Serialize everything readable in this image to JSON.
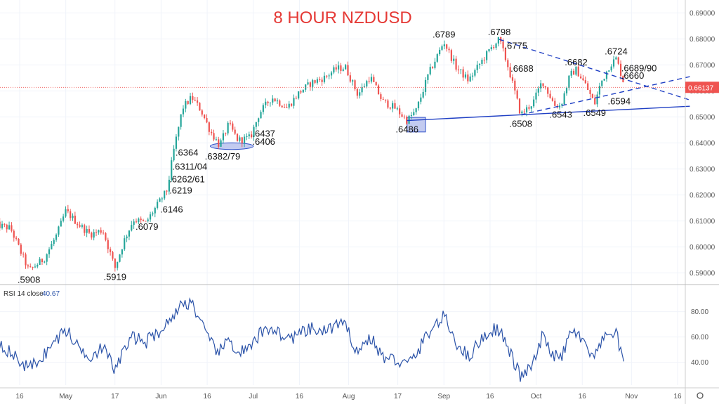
{
  "chart_data": {
    "type": "candlestick",
    "title": "8  HOUR NZDUSD",
    "price_axis": {
      "ticks": [
        "0.69000",
        "0.68000",
        "0.67000",
        "0.66000",
        "0.65000",
        "0.64000",
        "0.63000",
        "0.62000",
        "0.61000",
        "0.60000",
        "0.59000"
      ],
      "ylim": [
        0.5855,
        0.6928
      ],
      "current_price": "0.66137"
    },
    "time_axis": {
      "ticks": [
        "16",
        "May",
        "17",
        "Jun",
        "16",
        "Jul",
        "16",
        "Aug",
        "17",
        "Sep",
        "16",
        "Oct",
        "16",
        "Nov",
        "16"
      ]
    },
    "price_path": [
      [
        "Apr 08",
        0.6085
      ],
      [
        "Apr 13",
        0.6072
      ],
      [
        "Apr 19",
        0.5908
      ],
      [
        "Apr 24",
        0.5955
      ],
      [
        "Apr 28",
        0.6045
      ],
      [
        "May 01",
        0.6138
      ],
      [
        "May 05",
        0.6088
      ],
      [
        "May 09",
        0.6048
      ],
      [
        "May 13",
        0.6065
      ],
      [
        "May 17",
        0.5919
      ],
      [
        "May 20",
        0.6025
      ],
      [
        "May 23",
        0.6105
      ],
      [
        "May 27",
        0.6092
      ],
      [
        "May 31",
        0.6165
      ],
      [
        "Jun 03",
        0.6219
      ],
      [
        "Jun 05",
        0.6364
      ],
      [
        "Jun 08",
        0.6535
      ],
      [
        "Jun 11",
        0.6575
      ],
      [
        "Jun 14",
        0.6525
      ],
      [
        "Jun 17",
        0.6445
      ],
      [
        "Jun 20",
        0.639
      ],
      [
        "Jun 23",
        0.6472
      ],
      [
        "Jun 26",
        0.641
      ],
      [
        "Jun 30",
        0.642
      ],
      [
        "Jul 03",
        0.6515
      ],
      [
        "Jul 07",
        0.6575
      ],
      [
        "Jul 12",
        0.6535
      ],
      [
        "Jul 16",
        0.6595
      ],
      [
        "Jul 20",
        0.6632
      ],
      [
        "Jul 24",
        0.665
      ],
      [
        "Jul 28",
        0.6685
      ],
      [
        "Jul 31",
        0.669
      ],
      [
        "Aug 04",
        0.6585
      ],
      [
        "Aug 08",
        0.6655
      ],
      [
        "Aug 12",
        0.656
      ],
      [
        "Aug 16",
        0.6535
      ],
      [
        "Aug 20",
        0.6486
      ],
      [
        "Aug 23",
        0.6525
      ],
      [
        "Aug 27",
        0.6665
      ],
      [
        "Sep 01",
        0.6789
      ],
      [
        "Sep 05",
        0.669
      ],
      [
        "Sep 09",
        0.664
      ],
      [
        "Sep 13",
        0.671
      ],
      [
        "Sep 17",
        0.6775
      ],
      [
        "Sep 19",
        0.6798
      ],
      [
        "Sep 22",
        0.6688
      ],
      [
        "Sep 26",
        0.6508
      ],
      [
        "Sep 30",
        0.6555
      ],
      [
        "Oct 03",
        0.6638
      ],
      [
        "Oct 07",
        0.6545
      ],
      [
        "Oct 09",
        0.6543
      ],
      [
        "Oct 12",
        0.666
      ],
      [
        "Oct 14",
        0.6682
      ],
      [
        "Oct 17",
        0.6625
      ],
      [
        "Oct 20",
        0.6549
      ],
      [
        "Oct 22",
        0.663
      ],
      [
        "Oct 25",
        0.67
      ],
      [
        "Oct 27",
        0.6724
      ],
      [
        "Oct 28",
        0.6689
      ],
      [
        "Oct 30",
        0.6612
      ]
    ],
    "annotations": [
      {
        "label": ".5908",
        "date": "Apr 19",
        "price": 0.5908,
        "anchor": "below"
      },
      {
        "label": ".5919",
        "date": "May 17",
        "price": 0.5919,
        "anchor": "below"
      },
      {
        "label": ".6079",
        "date": "May 23",
        "price": 0.6079,
        "anchor": "right"
      },
      {
        "label": ".6146",
        "date": "May 31",
        "price": 0.6146,
        "anchor": "right"
      },
      {
        "label": ".6219",
        "date": "Jun 03",
        "price": 0.6219,
        "anchor": "right"
      },
      {
        "label": ".6262/61",
        "date": "Jun 03",
        "price": 0.6262,
        "anchor": "right"
      },
      {
        "label": ".6311/04",
        "date": "Jun 04",
        "price": 0.6311,
        "anchor": "right"
      },
      {
        "label": ".6364",
        "date": "Jun 05",
        "price": 0.6364,
        "anchor": "right"
      },
      {
        "label": ".6382/79",
        "date": "Jun 21",
        "price": 0.6382,
        "anchor": "below"
      },
      {
        "label": ".6406",
        "date": "Jun 30",
        "price": 0.6406,
        "anchor": "right"
      },
      {
        "label": ".6437",
        "date": "Jun 30",
        "price": 0.6437,
        "anchor": "right"
      },
      {
        "label": ".6486",
        "date": "Aug 20",
        "price": 0.6486,
        "anchor": "below"
      },
      {
        "label": ".6789",
        "date": "Sep 01",
        "price": 0.6789,
        "anchor": "above"
      },
      {
        "label": ".6798",
        "date": "Sep 19",
        "price": 0.6798,
        "anchor": "above"
      },
      {
        "label": ".6775",
        "date": "Sep 20",
        "price": 0.6775,
        "anchor": "right"
      },
      {
        "label": ".6688",
        "date": "Sep 22",
        "price": 0.6688,
        "anchor": "right"
      },
      {
        "label": ".6508",
        "date": "Sep 26",
        "price": 0.6508,
        "anchor": "below"
      },
      {
        "label": ".6543",
        "date": "Oct 09",
        "price": 0.6543,
        "anchor": "below"
      },
      {
        "label": ".6682",
        "date": "Oct 14",
        "price": 0.6682,
        "anchor": "above"
      },
      {
        "label": ".6549",
        "date": "Oct 20",
        "price": 0.6549,
        "anchor": "below"
      },
      {
        "label": ".6724",
        "date": "Oct 27",
        "price": 0.6724,
        "anchor": "above"
      },
      {
        "label": ".6689/90",
        "date": "Oct 28",
        "price": 0.6689,
        "anchor": "right"
      },
      {
        "label": ".6660",
        "date": "Oct 28",
        "price": 0.666,
        "anchor": "right"
      },
      {
        "label": ".6594",
        "date": "Oct 28",
        "price": 0.6594,
        "anchor": "below"
      }
    ],
    "trendlines": [
      {
        "style": "solid",
        "from": [
          "Aug 20",
          0.6486
        ],
        "to": [
          "Nov 20",
          0.6541
        ]
      },
      {
        "style": "dashed",
        "from": [
          "Sep 19",
          0.6798
        ],
        "to": [
          "Nov 20",
          0.6565
        ]
      },
      {
        "style": "dashed",
        "from": [
          "Sep 26",
          0.6508
        ],
        "to": [
          "Nov 20",
          0.6655
        ]
      }
    ],
    "support_zones": [
      {
        "from": [
          "Jun 17",
          0.6395
        ],
        "to": [
          "Jul 01",
          0.638
        ]
      },
      {
        "from": [
          "Aug 20",
          0.6498
        ],
        "to": [
          "Aug 26",
          0.6442
        ]
      }
    ],
    "rsi": {
      "label": "RSI 14 close",
      "value": "40.67",
      "ticks": [
        "80.00",
        "60.00",
        "40.00"
      ],
      "ylim": [
        22,
        92
      ],
      "values": [
        [
          "Apr 08",
          60
        ],
        [
          "Apr 13",
          47
        ],
        [
          "Apr 19",
          35
        ],
        [
          "Apr 24",
          46
        ],
        [
          "Apr 28",
          58
        ],
        [
          "May 01",
          66
        ],
        [
          "May 05",
          52
        ],
        [
          "May 09",
          45
        ],
        [
          "May 13",
          52
        ],
        [
          "May 17",
          34
        ],
        [
          "May 20",
          50
        ],
        [
          "May 23",
          60
        ],
        [
          "May 27",
          56
        ],
        [
          "May 31",
          64
        ],
        [
          "Jun 03",
          70
        ],
        [
          "Jun 05",
          78
        ],
        [
          "Jun 08",
          86
        ],
        [
          "Jun 11",
          88
        ],
        [
          "Jun 14",
          70
        ],
        [
          "Jun 17",
          55
        ],
        [
          "Jun 20",
          48
        ],
        [
          "Jun 23",
          58
        ],
        [
          "Jun 26",
          48
        ],
        [
          "Jun 30",
          50
        ],
        [
          "Jul 03",
          62
        ],
        [
          "Jul 07",
          68
        ],
        [
          "Jul 12",
          58
        ],
        [
          "Jul 16",
          62
        ],
        [
          "Jul 20",
          66
        ],
        [
          "Jul 24",
          64
        ],
        [
          "Jul 28",
          70
        ],
        [
          "Jul 31",
          68
        ],
        [
          "Aug 04",
          48
        ],
        [
          "Aug 08",
          60
        ],
        [
          "Aug 12",
          44
        ],
        [
          "Aug 16",
          42
        ],
        [
          "Aug 20",
          38
        ],
        [
          "Aug 23",
          46
        ],
        [
          "Aug 27",
          64
        ],
        [
          "Sep 01",
          76
        ],
        [
          "Sep 05",
          56
        ],
        [
          "Sep 09",
          44
        ],
        [
          "Sep 13",
          58
        ],
        [
          "Sep 17",
          66
        ],
        [
          "Sep 19",
          66
        ],
        [
          "Sep 22",
          50
        ],
        [
          "Sep 26",
          28
        ],
        [
          "Sep 30",
          38
        ],
        [
          "Oct 03",
          60
        ],
        [
          "Oct 07",
          45
        ],
        [
          "Oct 09",
          42
        ],
        [
          "Oct 12",
          62
        ],
        [
          "Oct 14",
          64
        ],
        [
          "Oct 17",
          52
        ],
        [
          "Oct 20",
          42
        ],
        [
          "Oct 22",
          55
        ],
        [
          "Oct 25",
          62
        ],
        [
          "Oct 27",
          66
        ],
        [
          "Oct 28",
          50
        ],
        [
          "Oct 30",
          40.67
        ]
      ]
    }
  },
  "colors": {
    "up": "#26a69a",
    "down": "#ef5350",
    "rsi_line": "#2a52a8",
    "trend": "#1f3fc4",
    "price_tag": "#ef5350"
  }
}
